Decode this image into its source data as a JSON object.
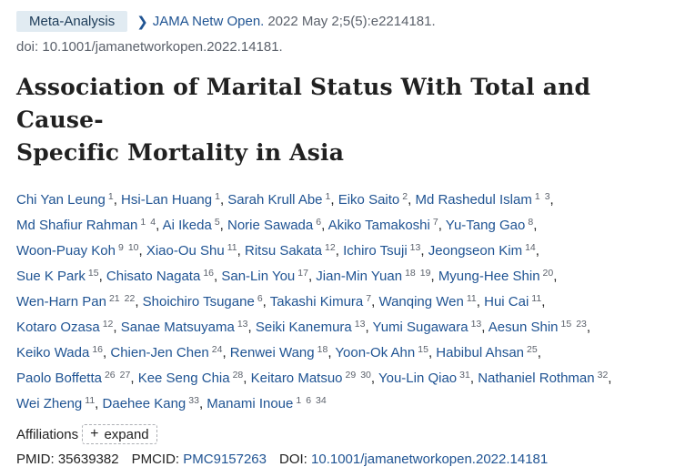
{
  "badge": "Meta-Analysis",
  "journal": "JAMA Netw Open.",
  "citation": "2022 May 2;5(5):e2214181.",
  "doi_line": "doi: 10.1001/jamanetworkopen.2022.14181.",
  "title_line1": "Association of Marital Status With Total and Cause-",
  "title_line2": "Specific Mortality in Asia",
  "authors": [
    {
      "name": "Chi Yan Leung",
      "affs": [
        "1"
      ]
    },
    {
      "name": "Hsi-Lan Huang",
      "affs": [
        "1"
      ]
    },
    {
      "name": "Sarah Krull Abe",
      "affs": [
        "1"
      ]
    },
    {
      "name": "Eiko Saito",
      "affs": [
        "2"
      ]
    },
    {
      "name": "Md Rashedul Islam",
      "affs": [
        "1",
        "3"
      ]
    },
    {
      "name": "Md Shafiur Rahman",
      "affs": [
        "1",
        "4"
      ]
    },
    {
      "name": "Ai Ikeda",
      "affs": [
        "5"
      ]
    },
    {
      "name": "Norie Sawada",
      "affs": [
        "6"
      ]
    },
    {
      "name": "Akiko Tamakoshi",
      "affs": [
        "7"
      ]
    },
    {
      "name": "Yu-Tang Gao",
      "affs": [
        "8"
      ]
    },
    {
      "name": "Woon-Puay Koh",
      "affs": [
        "9",
        "10"
      ]
    },
    {
      "name": "Xiao-Ou Shu",
      "affs": [
        "11"
      ]
    },
    {
      "name": "Ritsu Sakata",
      "affs": [
        "12"
      ]
    },
    {
      "name": "Ichiro Tsuji",
      "affs": [
        "13"
      ]
    },
    {
      "name": "Jeongseon Kim",
      "affs": [
        "14"
      ]
    },
    {
      "name": "Sue K Park",
      "affs": [
        "15"
      ]
    },
    {
      "name": "Chisato Nagata",
      "affs": [
        "16"
      ]
    },
    {
      "name": "San-Lin You",
      "affs": [
        "17"
      ]
    },
    {
      "name": "Jian-Min Yuan",
      "affs": [
        "18",
        "19"
      ]
    },
    {
      "name": "Myung-Hee Shin",
      "affs": [
        "20"
      ]
    },
    {
      "name": "Wen-Harn Pan",
      "affs": [
        "21",
        "22"
      ]
    },
    {
      "name": "Shoichiro Tsugane",
      "affs": [
        "6"
      ]
    },
    {
      "name": "Takashi Kimura",
      "affs": [
        "7"
      ]
    },
    {
      "name": "Wanqing Wen",
      "affs": [
        "11"
      ]
    },
    {
      "name": "Hui Cai",
      "affs": [
        "11"
      ]
    },
    {
      "name": "Kotaro Ozasa",
      "affs": [
        "12"
      ]
    },
    {
      "name": "Sanae Matsuyama",
      "affs": [
        "13"
      ]
    },
    {
      "name": "Seiki Kanemura",
      "affs": [
        "13"
      ]
    },
    {
      "name": "Yumi Sugawara",
      "affs": [
        "13"
      ]
    },
    {
      "name": "Aesun Shin",
      "affs": [
        "15",
        "23"
      ]
    },
    {
      "name": "Keiko Wada",
      "affs": [
        "16"
      ]
    },
    {
      "name": "Chien-Jen Chen",
      "affs": [
        "24"
      ]
    },
    {
      "name": "Renwei Wang",
      "affs": [
        "18"
      ]
    },
    {
      "name": "Yoon-Ok Ahn",
      "affs": [
        "15"
      ]
    },
    {
      "name": "Habibul Ahsan",
      "affs": [
        "25"
      ]
    },
    {
      "name": "Paolo Boffetta",
      "affs": [
        "26",
        "27"
      ]
    },
    {
      "name": "Kee Seng Chia",
      "affs": [
        "28"
      ]
    },
    {
      "name": "Keitaro Matsuo",
      "affs": [
        "29",
        "30"
      ]
    },
    {
      "name": "You-Lin Qiao",
      "affs": [
        "31"
      ]
    },
    {
      "name": "Nathaniel Rothman",
      "affs": [
        "32"
      ]
    },
    {
      "name": "Wei Zheng",
      "affs": [
        "11"
      ]
    },
    {
      "name": "Daehee Kang",
      "affs": [
        "33"
      ]
    },
    {
      "name": "Manami Inoue",
      "affs": [
        "1",
        "6",
        "34"
      ]
    }
  ],
  "author_lines": [
    5,
    5,
    5,
    5,
    5,
    5,
    5,
    5,
    3
  ],
  "affiliations_label": "Affiliations",
  "expand_label": "expand",
  "pmid_label": "PMID:",
  "pmid": "35639382",
  "pmcid_label": "PMCID:",
  "pmcid": "PMC9157263",
  "doi_label": "DOI:",
  "doi": "10.1001/jamanetworkopen.2022.14181",
  "colors": {
    "link": "#205493",
    "badge_bg": "#e1ebf2"
  }
}
